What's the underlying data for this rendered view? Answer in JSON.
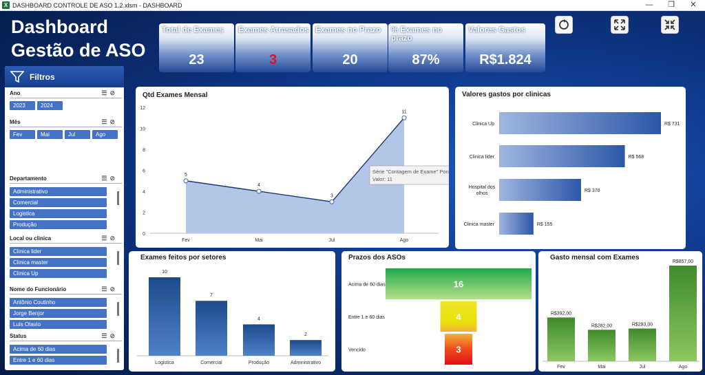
{
  "window": {
    "title": "DASHBOARD CONTROLE DE ASO 1.2.xlsm - DASHBOARD",
    "minimize": "—",
    "restore": "❐",
    "close": "✕"
  },
  "header": {
    "title_line1": "Dashboard",
    "title_line2": "Gestão de ASO"
  },
  "kpis": [
    {
      "label": "Total de Exames",
      "value": "23"
    },
    {
      "label": "Exames Atrasados",
      "value": "3",
      "color": "#e01020"
    },
    {
      "label": "Exames no Prazo",
      "value": "20"
    },
    {
      "label": "% Exames no prazo",
      "value": "87%"
    },
    {
      "label": "Valores Gastos",
      "value": "R$1.824"
    }
  ],
  "filters": {
    "title": "Filtros",
    "ano": {
      "label": "Ano",
      "items": [
        "2023",
        "2024"
      ]
    },
    "mes": {
      "label": "Mês",
      "items": [
        "Fev",
        "Mai",
        "Jul",
        "Ago"
      ]
    },
    "departamento": {
      "label": "Departamento",
      "items": [
        "Administrativo",
        "Comercial",
        "Logistica",
        "Produção"
      ]
    },
    "local": {
      "label": "Local ou clinica",
      "items": [
        "Clinica lider",
        "Clinica master",
        "Clinica Up"
      ]
    },
    "funcionario": {
      "label": "Nome do Funcionário",
      "items": [
        "Antônio Coutinho",
        "Jorge Benjor",
        "Luis Otavio"
      ]
    },
    "status": {
      "label": "Status",
      "items": [
        "Acima de 60 dias",
        "Entre 1 e 60 dias"
      ]
    }
  },
  "tooltip": {
    "line1": "Série \"Contagem de Exame\" Ponto \"Ago\"",
    "line2": "Valor: 11"
  },
  "chart_data": [
    {
      "id": "mensal",
      "type": "area",
      "title": "Qtd Exames Mensal",
      "categories": [
        "Fev",
        "Mai",
        "Jul",
        "Ago"
      ],
      "values": [
        5,
        4,
        3,
        11
      ],
      "ylim": [
        0,
        12
      ],
      "yticks": [
        0,
        2,
        4,
        6,
        8,
        10,
        12
      ]
    },
    {
      "id": "clinicas",
      "type": "bar",
      "orientation": "horizontal",
      "title": "Valores gastos por clinicas",
      "categories": [
        "Clinica Up",
        "Clinica lider",
        "Hospital dos olhos",
        "Clinica master"
      ],
      "values": [
        731,
        568,
        370,
        155
      ],
      "value_labels": [
        "R$ 731",
        "R$ 568",
        "R$ 370",
        "R$ 155"
      ]
    },
    {
      "id": "setores",
      "type": "bar",
      "title": "Exames feitos por setores",
      "categories": [
        "Logistica",
        "Comercial",
        "Produção",
        "Administrativo"
      ],
      "values": [
        10,
        7,
        4,
        2
      ]
    },
    {
      "id": "prazos",
      "type": "bar",
      "orientation": "horizontal",
      "title": "Prazos dos ASOs",
      "categories": [
        "Acima de 60 dias",
        "Entre 1 e 60 dias",
        "Vencido"
      ],
      "values": [
        16,
        4,
        3
      ],
      "colors": [
        "#22b04b",
        "#f5e21c",
        "#e8221c"
      ]
    },
    {
      "id": "gasto",
      "type": "bar",
      "title": "Gasto mensal com Exames",
      "categories": [
        "Fev",
        "Mai",
        "Jul",
        "Ago"
      ],
      "values": [
        392,
        282,
        293,
        857
      ],
      "value_labels": [
        "R$392,00",
        "R$282,00",
        "R$293,00",
        "R$857,00"
      ]
    }
  ]
}
